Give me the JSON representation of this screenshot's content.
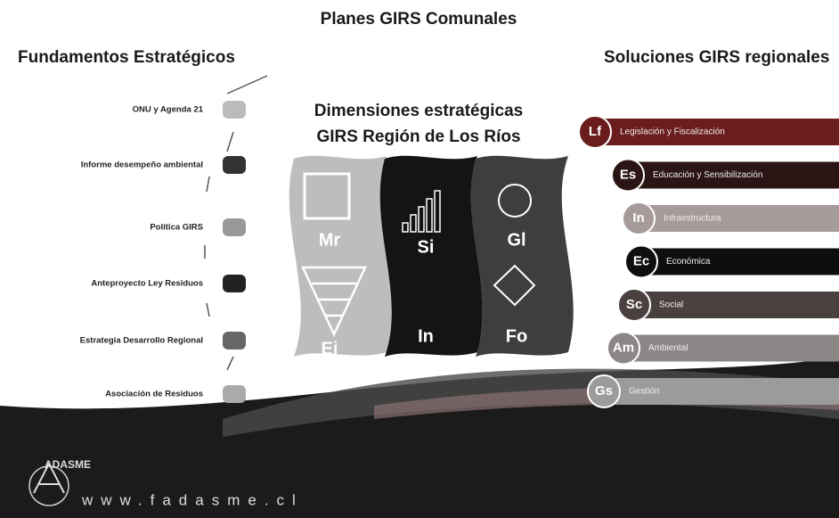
{
  "title": "Planes GIRS Comunales",
  "left": {
    "heading": "Fundamentos Estratégicos",
    "items": [
      "ONU y Agenda 21",
      "Informe desempeño ambiental",
      "Política GIRS",
      "Anteproyecto Ley Residuos",
      "Estrategia Desarrollo Regional",
      "Asociación de Residuos"
    ]
  },
  "center": {
    "heading": [
      "Dimensiones estratégicas",
      "GIRS Región de Los Ríos"
    ],
    "tiles": [
      "Mr",
      "Ej",
      "Si",
      "In",
      "Gl",
      "Fo"
    ]
  },
  "right": {
    "heading": "Soluciones GIRS regionales",
    "items": [
      {
        "code": "Lf",
        "label": "Legislación y Fiscalización"
      },
      {
        "code": "Es",
        "label": "Educación y Sensibilización"
      },
      {
        "code": "In",
        "label": "Infraestructura"
      },
      {
        "code": "Ec",
        "label": "Económica"
      },
      {
        "code": "Sc",
        "label": "Social"
      },
      {
        "code": "Am",
        "label": "Ambiental"
      },
      {
        "code": "Gs",
        "label": "Gestión"
      }
    ]
  },
  "footer": {
    "brand": "ADASME",
    "url": "www.fadasme.cl"
  }
}
